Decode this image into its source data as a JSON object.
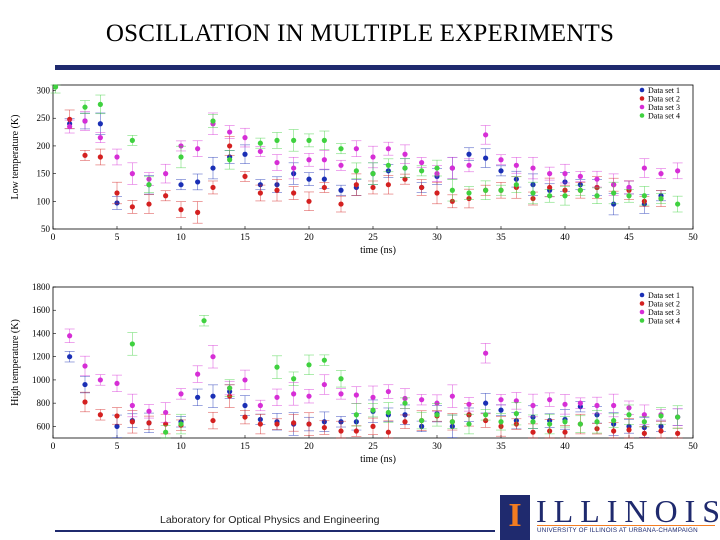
{
  "slide": {
    "title": "OSCILLATION IN MULTIPLE EXPERIMENTS",
    "footer": "Laboratory for Optical Physics and Engineering",
    "logo_word": "ILLINOIS",
    "logo_letter": "I",
    "logo_sub": "UNIVERSITY OF ILLINOIS AT URBANA-CHAMPAIGN"
  },
  "colors": {
    "rule": "#1f2a6e",
    "logo_orange": "#f47c20"
  },
  "chart_data": [
    {
      "type": "scatter",
      "xlabel": "time (ns)",
      "ylabel": "Low temperature (K)",
      "xlim": [
        0,
        50
      ],
      "ylim": [
        50,
        310
      ],
      "xticks": [
        0,
        5,
        10,
        15,
        20,
        25,
        30,
        35,
        40,
        45,
        50
      ],
      "yticks": [
        50,
        100,
        150,
        200,
        250,
        300
      ],
      "legend_position": "top-right",
      "series": [
        {
          "name": "Data set 1",
          "color": "#1a2fb5",
          "x": [
            1.3,
            2.5,
            3.7,
            5,
            7.5,
            10,
            11.3,
            12.5,
            13.8,
            15,
            16.2,
            17.5,
            18.8,
            20,
            21.2,
            22.5,
            23.7,
            25,
            26.2,
            27.5,
            28.8,
            30,
            31.2,
            32.5,
            33.8,
            35,
            36.2,
            37.5,
            38.8,
            40,
            41.2,
            42.5,
            43.8,
            45,
            46.2,
            47.5
          ],
          "y": [
            240,
            245,
            240,
            97,
            130,
            130,
            135,
            160,
            180,
            185,
            130,
            130,
            150,
            140,
            140,
            120,
            125,
            150,
            155,
            160,
            125,
            145,
            160,
            185,
            178,
            155,
            140,
            130,
            120,
            135,
            130,
            125,
            95,
            125,
            95,
            110
          ]
        },
        {
          "name": "Data set 2",
          "color": "#d42020",
          "x": [
            1.3,
            2.5,
            3.7,
            5,
            6.2,
            7.5,
            8.8,
            10,
            11.3,
            12.5,
            13.8,
            15,
            16.2,
            17.5,
            18.8,
            20,
            21.2,
            22.5,
            23.7,
            25,
            26.2,
            27.5,
            28.8,
            30,
            31.2,
            32.5,
            33.8,
            35,
            36.2,
            37.5,
            38.8,
            40,
            41.2,
            42.5,
            43.8,
            45,
            46.2,
            47.5
          ],
          "y": [
            248,
            183,
            180,
            115,
            90,
            95,
            110,
            85,
            80,
            125,
            200,
            145,
            115,
            120,
            115,
            100,
            125,
            95,
            130,
            125,
            130,
            140,
            125,
            115,
            100,
            105,
            120,
            120,
            125,
            105,
            125,
            120,
            120,
            125,
            130,
            120,
            100,
            105
          ]
        },
        {
          "name": "Data set 3",
          "color": "#d62ed6",
          "x": [
            1.3,
            2.5,
            3.7,
            5,
            6.2,
            7.5,
            8.8,
            10,
            11.3,
            12.5,
            13.8,
            15,
            16.2,
            17.5,
            18.8,
            20,
            21.2,
            22.5,
            23.7,
            25,
            26.2,
            27.5,
            28.8,
            30,
            31.2,
            32.5,
            33.8,
            35,
            36.2,
            37.5,
            38.8,
            40,
            41.2,
            42.5,
            43.8,
            45,
            46.2,
            47.5,
            48.8
          ],
          "y": [
            235,
            245,
            215,
            180,
            150,
            140,
            150,
            200,
            195,
            240,
            225,
            215,
            190,
            170,
            160,
            175,
            175,
            165,
            195,
            180,
            195,
            185,
            170,
            150,
            160,
            165,
            220,
            175,
            165,
            160,
            150,
            150,
            145,
            140,
            130,
            125,
            160,
            150,
            155
          ]
        },
        {
          "name": "Data set 4",
          "color": "#3fd13f",
          "x": [
            0.2,
            2.5,
            3.7,
            6.2,
            7.5,
            10,
            12.5,
            13.8,
            16.2,
            17.5,
            18.8,
            20,
            21.2,
            22.5,
            23.7,
            25,
            26.2,
            27.5,
            28.8,
            30,
            31.2,
            32.5,
            33.8,
            35,
            36.2,
            37.5,
            38.8,
            40,
            41.2,
            42.5,
            43.8,
            45,
            46.2,
            47.5,
            48.8
          ],
          "y": [
            315,
            270,
            275,
            210,
            130,
            180,
            245,
            175,
            205,
            210,
            210,
            210,
            210,
            195,
            155,
            150,
            165,
            160,
            155,
            160,
            120,
            115,
            120,
            120,
            130,
            115,
            110,
            110,
            120,
            110,
            115,
            110,
            110,
            105,
            95
          ]
        }
      ]
    },
    {
      "type": "scatter",
      "xlabel": "time (ns)",
      "ylabel": "High temperature (K)",
      "xlim": [
        0,
        50
      ],
      "ylim": [
        500,
        1800
      ],
      "xticks": [
        0,
        5,
        10,
        15,
        20,
        25,
        30,
        35,
        40,
        45,
        50
      ],
      "yticks": [
        600,
        800,
        1000,
        1200,
        1400,
        1600,
        1800
      ],
      "legend_position": "top-right",
      "series": [
        {
          "name": "Data set 1",
          "color": "#1a2fb5",
          "x": [
            1.3,
            2.5,
            5,
            6.2,
            7.5,
            10,
            11.3,
            12.5,
            13.8,
            15,
            16.2,
            17.5,
            18.8,
            20,
            21.2,
            22.5,
            23.7,
            25,
            26.2,
            27.5,
            28.8,
            30,
            31.2,
            32.5,
            33.8,
            35,
            36.2,
            37.5,
            38.8,
            40,
            41.2,
            42.5,
            43.8,
            45,
            46.2,
            47.5,
            48.8
          ],
          "y": [
            1200,
            960,
            600,
            650,
            630,
            640,
            850,
            860,
            900,
            780,
            660,
            640,
            620,
            620,
            640,
            640,
            640,
            730,
            700,
            700,
            600,
            710,
            600,
            700,
            800,
            740,
            650,
            680,
            650,
            660,
            770,
            700,
            620,
            600,
            590,
            600,
            680
          ]
        },
        {
          "name": "Data set 2",
          "color": "#d42020",
          "x": [
            2.5,
            3.7,
            5,
            6.2,
            7.5,
            8.8,
            10,
            12.5,
            13.8,
            15,
            16.2,
            17.5,
            18.8,
            20,
            21.2,
            22.5,
            23.7,
            25,
            26.2,
            27.5,
            28.8,
            30,
            31.2,
            32.5,
            33.8,
            35,
            36.2,
            37.5,
            38.8,
            40,
            41.2,
            42.5,
            43.8,
            45,
            46.2,
            47.5,
            48.8
          ],
          "y": [
            810,
            700,
            690,
            640,
            630,
            620,
            610,
            650,
            860,
            680,
            620,
            620,
            630,
            620,
            590,
            560,
            560,
            600,
            550,
            640,
            650,
            690,
            640,
            700,
            650,
            600,
            620,
            550,
            560,
            550,
            620,
            580,
            560,
            570,
            540,
            560,
            540
          ]
        },
        {
          "name": "Data set 3",
          "color": "#d62ed6",
          "x": [
            1.3,
            2.5,
            3.7,
            5,
            6.2,
            7.5,
            8.8,
            10,
            11.3,
            12.5,
            13.8,
            15,
            16.2,
            17.5,
            18.8,
            20,
            21.2,
            22.5,
            23.7,
            25,
            26.2,
            27.5,
            28.8,
            30,
            31.2,
            32.5,
            33.8,
            35,
            36.2,
            37.5,
            38.8,
            40,
            41.2,
            42.5,
            43.8,
            45,
            46.2,
            47.5,
            48.8
          ],
          "y": [
            1380,
            1120,
            1000,
            970,
            780,
            730,
            720,
            880,
            1050,
            1200,
            930,
            1000,
            780,
            850,
            880,
            860,
            960,
            880,
            870,
            850,
            900,
            840,
            830,
            800,
            860,
            790,
            1230,
            830,
            820,
            780,
            830,
            790,
            800,
            780,
            780,
            760,
            700,
            700,
            680
          ]
        },
        {
          "name": "Data set 4",
          "color": "#3fd13f",
          "x": [
            6.2,
            8.8,
            10,
            11.8,
            13.8,
            17.5,
            18.8,
            20,
            21.2,
            22.5,
            23.7,
            25,
            26.2,
            27.5,
            28.8,
            30,
            31.2,
            32.5,
            33.8,
            35,
            36.2,
            37.5,
            38.8,
            40,
            41.2,
            42.5,
            43.8,
            45,
            46.2,
            47.5,
            48.8
          ],
          "y": [
            1310,
            550,
            620,
            1510,
            930,
            1110,
            1010,
            1130,
            1170,
            1010,
            700,
            740,
            720,
            800,
            650,
            700,
            640,
            620,
            700,
            640,
            710,
            640,
            620,
            640,
            620,
            640,
            650,
            700,
            640,
            690,
            680
          ]
        }
      ]
    }
  ]
}
